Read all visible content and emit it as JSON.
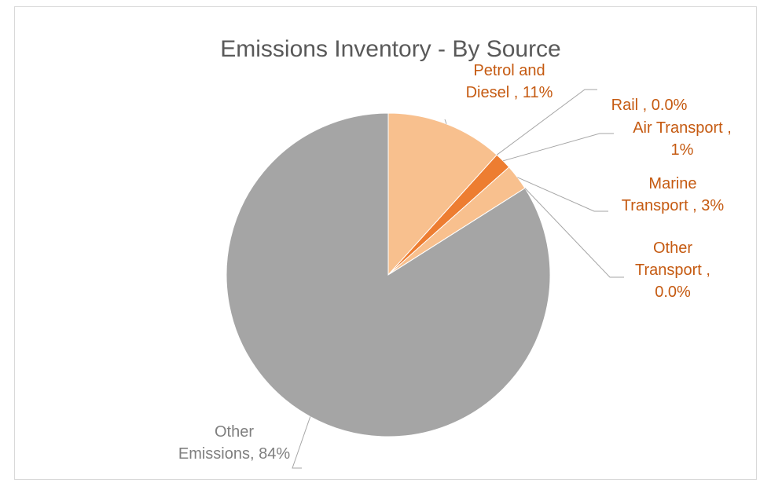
{
  "chart_data": {
    "type": "pie",
    "title": "Emissions Inventory - By Source",
    "slices": [
      {
        "name": "Petrol and Diesel",
        "value": 11,
        "color": "#f8c08e",
        "label_color": "#c55a11",
        "label_lines": [
          "Petrol and",
          "Diesel , 11%"
        ]
      },
      {
        "name": "Rail",
        "value": 0.0,
        "color": "#c55a11",
        "label_color": "#c55a11",
        "label_lines": [
          "Rail , 0.0%"
        ]
      },
      {
        "name": "Air Transport",
        "value": 1,
        "color": "#ed7d31",
        "label_color": "#c55a11",
        "label_lines": [
          "Air Transport ,",
          "1%"
        ]
      },
      {
        "name": "Marine Transport",
        "value": 3,
        "color": "#f8c08e",
        "label_color": "#c55a11",
        "label_lines": [
          "Marine",
          "Transport , 3%"
        ]
      },
      {
        "name": "Other Transport",
        "value": 0.0,
        "color": "#c55a11",
        "label_color": "#c55a11",
        "label_lines": [
          "Other",
          "Transport ,",
          "0.0%"
        ]
      },
      {
        "name": "Other Emissions",
        "value": 84,
        "color": "#a5a5a5",
        "label_color": "#7f7f7f",
        "label_lines": [
          "Other",
          "Emissions, 84%"
        ]
      }
    ]
  }
}
